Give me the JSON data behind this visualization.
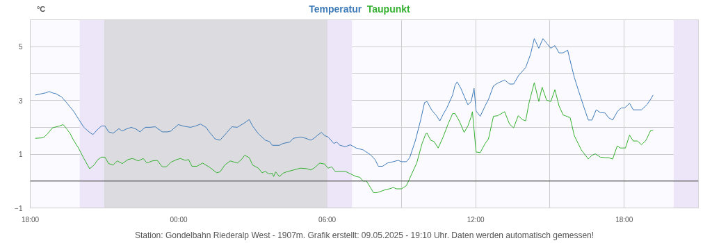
{
  "chart_data": {
    "type": "line",
    "ylabel": "°C",
    "annotations": [
      "Station: Gondelbahn Riederalp West - 1907m. Grafik erstellt: 09.05.2025 - 19:10 Uhr. Daten werden automatisch gemessen!"
    ],
    "xlim": [
      "2025-05-08T18:00",
      "2025-05-09T21:00"
    ],
    "ylim": [
      -1,
      6
    ],
    "xticks": [
      {
        "value": "2025-05-08T18:00",
        "label": "18:00"
      },
      {
        "value": "2025-05-08T21:00",
        "label": null
      },
      {
        "value": "2025-05-09T00:00",
        "label": "00:00"
      },
      {
        "value": "2025-05-09T03:00",
        "label": null
      },
      {
        "value": "2025-05-09T06:00",
        "label": "06:00"
      },
      {
        "value": "2025-05-09T09:00",
        "label": null
      },
      {
        "value": "2025-05-09T12:00",
        "label": "12:00"
      },
      {
        "value": "2025-05-09T15:00",
        "label": null
      },
      {
        "value": "2025-05-09T18:00",
        "label": "18:00"
      },
      {
        "value": "2025-05-09T21:00",
        "label": null
      }
    ],
    "yticks": [
      -1,
      {
        "value": 0,
        "label": null
      },
      1,
      {
        "value": 2,
        "label": null
      },
      3,
      {
        "value": 4,
        "label": null
      },
      5,
      {
        "value": 6,
        "label": null
      }
    ],
    "grid": true,
    "bands": [
      {
        "axis": "x",
        "from": "2025-05-08T20:00",
        "to": "2025-05-08T21:00",
        "color": "#ece6f8"
      },
      {
        "axis": "x",
        "from": "2025-05-08T21:00",
        "to": "2025-05-09T06:00",
        "color": "#dcdce0"
      },
      {
        "axis": "x",
        "from": "2025-05-09T06:00",
        "to": "2025-05-09T07:00",
        "color": "#ece6f8"
      },
      {
        "axis": "x",
        "from": "2025-05-09T20:00",
        "to": "2025-05-09T21:00",
        "color": "#ece6f8"
      }
    ],
    "ref_lines": [
      {
        "axis": "y",
        "value": 0,
        "color": "#333333"
      }
    ],
    "series": [
      {
        "name": "Temperatur",
        "color": "#3d7ab8",
        "x": [
          "2025-05-08T18:12",
          "2025-05-08T18:37",
          "2025-05-08T18:46",
          "2025-05-08T18:54",
          "2025-05-08T19:02",
          "2025-05-08T19:16",
          "2025-05-08T19:28",
          "2025-05-08T19:45",
          "2025-05-08T19:57",
          "2025-05-08T20:10",
          "2025-05-08T20:24",
          "2025-05-08T20:32",
          "2025-05-08T20:44",
          "2025-05-08T20:53",
          "2025-05-08T21:01",
          "2025-05-08T21:10",
          "2025-05-08T21:21",
          "2025-05-08T21:35",
          "2025-05-08T21:43",
          "2025-05-08T21:52",
          "2025-05-08T22:05",
          "2025-05-08T22:17",
          "2025-05-08T22:26",
          "2025-05-08T22:39",
          "2025-05-08T22:51",
          "2025-05-08T23:03",
          "2025-05-08T23:20",
          "2025-05-08T23:33",
          "2025-05-08T23:41",
          "2025-05-08T23:59",
          "2025-05-09T00:10",
          "2025-05-09T00:20",
          "2025-05-09T00:29",
          "2025-05-09T00:41",
          "2025-05-09T00:53",
          "2025-05-09T01:06",
          "2025-05-09T01:15",
          "2025-05-09T01:28",
          "2025-05-09T01:40",
          "2025-05-09T01:57",
          "2025-05-09T02:09",
          "2025-05-09T02:22",
          "2025-05-09T02:40",
          "2025-05-09T02:51",
          "2025-05-09T02:59",
          "2025-05-09T03:13",
          "2025-05-09T03:30",
          "2025-05-09T03:40",
          "2025-05-09T03:47",
          "2025-05-09T04:04",
          "2025-05-09T04:13",
          "2025-05-09T04:29",
          "2025-05-09T04:38",
          "2025-05-09T04:55",
          "2025-05-09T05:08",
          "2025-05-09T05:20",
          "2025-05-09T05:28",
          "2025-05-09T05:37",
          "2025-05-09T05:46",
          "2025-05-09T05:54",
          "2025-05-09T06:02",
          "2025-05-09T06:16",
          "2025-05-09T06:23",
          "2025-05-09T06:31",
          "2025-05-09T06:44",
          "2025-05-09T06:56",
          "2025-05-09T07:10",
          "2025-05-09T07:27",
          "2025-05-09T07:35",
          "2025-05-09T07:44",
          "2025-05-09T07:56",
          "2025-05-09T08:04",
          "2025-05-09T08:14",
          "2025-05-09T08:26",
          "2025-05-09T08:40",
          "2025-05-09T08:52",
          "2025-05-09T09:00",
          "2025-05-09T09:12",
          "2025-05-09T09:20",
          "2025-05-09T09:34",
          "2025-05-09T09:46",
          "2025-05-09T09:56",
          "2025-05-09T10:02",
          "2025-05-09T10:13",
          "2025-05-09T10:25",
          "2025-05-09T10:33",
          "2025-05-09T10:41",
          "2025-05-09T10:50",
          "2025-05-09T11:04",
          "2025-05-09T11:10",
          "2025-05-09T11:15",
          "2025-05-09T11:24",
          "2025-05-09T11:32",
          "2025-05-09T11:41",
          "2025-05-09T11:49",
          "2025-05-09T11:56",
          "2025-05-09T12:01",
          "2025-05-09T12:11",
          "2025-05-09T12:23",
          "2025-05-09T12:31",
          "2025-05-09T12:43",
          "2025-05-09T12:53",
          "2025-05-09T13:10",
          "2025-05-09T13:22",
          "2025-05-09T13:32",
          "2025-05-09T13:44",
          "2025-05-09T14:01",
          "2025-05-09T14:13",
          "2025-05-09T14:22",
          "2025-05-09T14:33",
          "2025-05-09T14:43",
          "2025-05-09T14:52",
          "2025-05-09T15:02",
          "2025-05-09T15:12",
          "2025-05-09T15:22",
          "2025-05-09T15:32",
          "2025-05-09T15:43",
          "2025-05-09T15:49",
          "2025-05-09T15:59",
          "2025-05-09T16:11",
          "2025-05-09T16:23",
          "2025-05-09T16:33",
          "2025-05-09T16:42",
          "2025-05-09T16:52",
          "2025-05-09T17:02",
          "2025-05-09T17:14",
          "2025-05-09T17:22",
          "2025-05-09T17:32",
          "2025-05-09T17:44",
          "2025-05-09T17:53",
          "2025-05-09T18:01",
          "2025-05-09T18:13",
          "2025-05-09T18:22",
          "2025-05-09T18:42",
          "2025-05-09T18:55",
          "2025-05-09T19:04",
          "2025-05-09T19:10"
        ],
        "values": [
          3.2,
          3.28,
          3.33,
          3.28,
          3.25,
          3.13,
          2.92,
          2.6,
          2.31,
          2.0,
          1.81,
          1.73,
          1.93,
          2.05,
          2.05,
          1.83,
          1.78,
          1.95,
          1.86,
          1.93,
          2.0,
          1.93,
          1.83,
          2.0,
          2.0,
          2.02,
          1.83,
          1.83,
          1.86,
          2.1,
          2.05,
          2.02,
          2.0,
          2.05,
          2.12,
          2.0,
          1.81,
          1.57,
          1.52,
          1.81,
          2.02,
          2.0,
          2.17,
          2.29,
          2.05,
          1.76,
          1.52,
          1.47,
          1.33,
          1.33,
          1.4,
          1.45,
          1.59,
          1.64,
          1.59,
          1.52,
          1.59,
          1.71,
          1.81,
          1.69,
          1.64,
          1.4,
          1.45,
          1.33,
          1.28,
          1.35,
          1.23,
          1.16,
          1.08,
          0.99,
          0.8,
          0.55,
          0.55,
          0.67,
          0.72,
          0.77,
          0.72,
          0.72,
          0.87,
          1.52,
          2.24,
          2.92,
          2.96,
          2.65,
          2.43,
          2.24,
          2.48,
          2.72,
          3.2,
          3.57,
          3.69,
          3.45,
          3.16,
          2.84,
          2.96,
          3.45,
          2.6,
          2.41,
          2.8,
          3.04,
          3.54,
          3.64,
          3.76,
          3.61,
          3.61,
          3.93,
          4.22,
          4.72,
          5.3,
          4.94,
          5.3,
          5.13,
          4.94,
          5.04,
          4.77,
          4.77,
          4.87,
          4.48,
          3.86,
          3.28,
          2.72,
          2.27,
          2.27,
          2.65,
          2.55,
          2.53,
          2.36,
          2.27,
          2.6,
          2.72,
          2.72,
          2.89,
          2.65,
          2.65,
          2.84,
          3.04,
          3.2
        ]
      },
      {
        "name": "Taupunkt",
        "color": "#33b02f",
        "x": [
          "2025-05-08T18:12",
          "2025-05-08T18:32",
          "2025-05-08T18:42",
          "2025-05-08T18:54",
          "2025-05-08T19:11",
          "2025-05-08T19:20",
          "2025-05-08T19:28",
          "2025-05-08T19:37",
          "2025-05-08T19:45",
          "2025-05-08T19:57",
          "2025-05-08T20:10",
          "2025-05-08T20:24",
          "2025-05-08T20:35",
          "2025-05-08T20:44",
          "2025-05-08T20:53",
          "2025-05-08T21:01",
          "2025-05-08T21:10",
          "2025-05-08T21:21",
          "2025-05-08T21:31",
          "2025-05-08T21:43",
          "2025-05-08T21:57",
          "2025-05-08T22:08",
          "2025-05-08T22:22",
          "2025-05-08T22:34",
          "2025-05-08T22:43",
          "2025-05-08T22:56",
          "2025-05-08T23:08",
          "2025-05-08T23:20",
          "2025-05-08T23:30",
          "2025-05-08T23:41",
          "2025-05-08T23:55",
          "2025-05-09T00:04",
          "2025-05-09T00:16",
          "2025-05-09T00:24",
          "2025-05-09T00:32",
          "2025-05-09T00:44",
          "2025-05-09T00:58",
          "2025-05-09T01:15",
          "2025-05-09T01:32",
          "2025-05-09T01:40",
          "2025-05-09T01:52",
          "2025-05-09T02:05",
          "2025-05-09T02:22",
          "2025-05-09T02:32",
          "2025-05-09T02:40",
          "2025-05-09T02:51",
          "2025-05-09T02:59",
          "2025-05-09T03:13",
          "2025-05-09T03:22",
          "2025-05-09T03:30",
          "2025-05-09T03:38",
          "2025-05-09T03:47",
          "2025-05-09T03:50",
          "2025-05-09T03:55",
          "2025-05-09T04:04",
          "2025-05-09T04:13",
          "2025-05-09T04:21",
          "2025-05-09T04:38",
          "2025-05-09T04:55",
          "2025-05-09T05:11",
          "2025-05-09T05:20",
          "2025-05-09T05:28",
          "2025-05-09T05:42",
          "2025-05-09T05:54",
          "2025-05-09T06:02",
          "2025-05-09T06:11",
          "2025-05-09T06:19",
          "2025-05-09T06:44",
          "2025-05-09T06:56",
          "2025-05-09T07:10",
          "2025-05-09T07:19",
          "2025-05-09T07:27",
          "2025-05-09T07:35",
          "2025-05-09T07:44",
          "2025-05-09T07:52",
          "2025-05-09T08:01",
          "2025-05-09T08:14",
          "2025-05-09T08:23",
          "2025-05-09T08:31",
          "2025-05-09T08:40",
          "2025-05-09T08:48",
          "2025-05-09T09:00",
          "2025-05-09T09:12",
          "2025-05-09T09:25",
          "2025-05-09T09:37",
          "2025-05-09T09:50",
          "2025-05-09T09:59",
          "2025-05-09T10:02",
          "2025-05-09T10:11",
          "2025-05-09T10:19",
          "2025-05-09T10:29",
          "2025-05-09T10:41",
          "2025-05-09T10:53",
          "2025-05-09T11:04",
          "2025-05-09T11:10",
          "2025-05-09T11:20",
          "2025-05-09T11:32",
          "2025-05-09T11:41",
          "2025-05-09T11:49",
          "2025-05-09T11:52",
          "2025-05-09T12:01",
          "2025-05-09T12:11",
          "2025-05-09T12:23",
          "2025-05-09T12:31",
          "2025-05-09T12:43",
          "2025-05-09T12:53",
          "2025-05-09T13:10",
          "2025-05-09T13:22",
          "2025-05-09T13:32",
          "2025-05-09T13:43",
          "2025-05-09T13:53",
          "2025-05-09T14:01",
          "2025-05-09T14:10",
          "2025-05-09T14:22",
          "2025-05-09T14:33",
          "2025-05-09T14:41",
          "2025-05-09T14:52",
          "2025-05-09T15:02",
          "2025-05-09T15:12",
          "2025-05-09T15:22",
          "2025-05-09T15:32",
          "2025-05-09T15:49",
          "2025-05-09T15:59",
          "2025-05-09T16:16",
          "2025-05-09T16:33",
          "2025-05-09T16:42",
          "2025-05-09T16:50",
          "2025-05-09T17:02",
          "2025-05-09T17:14",
          "2025-05-09T17:22",
          "2025-05-09T17:32",
          "2025-05-09T17:43",
          "2025-05-09T17:51",
          "2025-05-09T18:03",
          "2025-05-09T18:13",
          "2025-05-09T18:22",
          "2025-05-09T18:32",
          "2025-05-09T18:42",
          "2025-05-09T18:53",
          "2025-05-09T19:04",
          "2025-05-09T19:10"
        ],
        "values": [
          1.59,
          1.61,
          1.76,
          1.98,
          2.05,
          2.1,
          1.95,
          1.76,
          1.52,
          1.23,
          0.84,
          0.46,
          0.6,
          0.8,
          0.89,
          0.89,
          0.65,
          0.6,
          0.75,
          0.65,
          0.8,
          0.84,
          0.75,
          0.84,
          0.67,
          0.75,
          0.77,
          0.53,
          0.53,
          0.7,
          0.8,
          0.84,
          0.77,
          0.8,
          0.55,
          0.55,
          0.67,
          0.51,
          0.31,
          0.34,
          0.6,
          0.75,
          0.67,
          0.8,
          0.96,
          0.87,
          0.6,
          0.48,
          0.31,
          0.36,
          0.27,
          0.29,
          0.17,
          0.34,
          0.17,
          0.29,
          0.34,
          0.41,
          0.48,
          0.46,
          0.41,
          0.48,
          0.67,
          0.63,
          0.48,
          0.53,
          0.36,
          0.36,
          0.27,
          0.17,
          0.14,
          0,
          0,
          -0.22,
          -0.43,
          -0.43,
          -0.36,
          -0.31,
          -0.29,
          -0.24,
          -0.29,
          -0.29,
          -0.17,
          0.27,
          0.67,
          1.4,
          1.76,
          1.78,
          1.52,
          1.47,
          1.23,
          1.64,
          2.12,
          2.51,
          2.51,
          2.24,
          1.81,
          2.05,
          2.39,
          2.58,
          1.08,
          1.06,
          1.4,
          1.57,
          2.41,
          2.43,
          2.58,
          2.12,
          1.98,
          2.43,
          2.29,
          2.24,
          2.96,
          3.66,
          2.96,
          3.49,
          3.01,
          2.96,
          3.4,
          2.8,
          2.46,
          2.36,
          1.69,
          1.16,
          0.82,
          0.96,
          1.01,
          0.89,
          0.87,
          0.87,
          0.82,
          1.3,
          1.23,
          1.23,
          1.71,
          1.49,
          1.49,
          1.35,
          1.52,
          1.88,
          1.9
        ]
      }
    ]
  }
}
